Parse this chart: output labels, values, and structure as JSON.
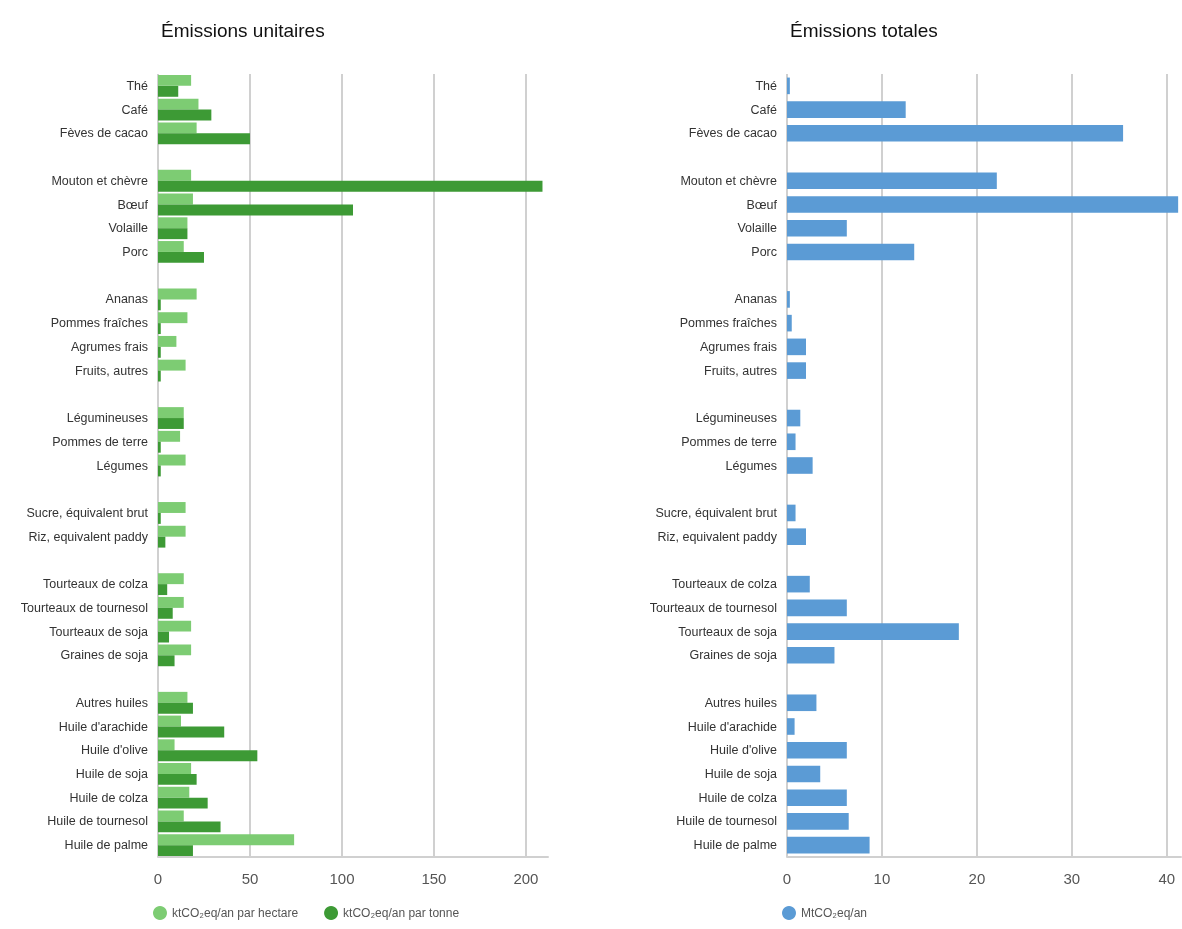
{
  "chart_data": [
    {
      "type": "bar",
      "orientation": "horizontal",
      "title": "Émissions unitaires",
      "categories": [
        "Thé",
        "Café",
        "Fèves de cacao",
        null,
        "Mouton et chèvre",
        "Bœuf",
        "Volaille",
        "Porc",
        null,
        "Ananas",
        "Pommes fraîches",
        "Agrumes frais",
        "Fruits, autres",
        null,
        "Légumineuses",
        "Pommes de terre",
        "Légumes",
        null,
        "Sucre, équivalent brut",
        "Riz, equivalent paddy",
        null,
        "Tourteaux de colza",
        "Tourteaux de tournesol",
        "Tourteaux de soja",
        "Graines de soja",
        null,
        "Autres huiles",
        "Huile d'arachide",
        "Huile d'olive",
        "Huile de soja",
        "Huile de colza",
        "Huile de tournesol",
        "Huile de palme"
      ],
      "series": [
        {
          "name": "ktCO₂eq/an par hectare",
          "color": "#7dcc73",
          "values": [
            18,
            22,
            21,
            null,
            18,
            19,
            16,
            14,
            null,
            21,
            16,
            10,
            15,
            null,
            14,
            12,
            15,
            null,
            15,
            15,
            null,
            14,
            14,
            18,
            18,
            null,
            16,
            12.5,
            9,
            18,
            17,
            14,
            74
          ]
        },
        {
          "name": "ktCO₂eq/an par tonne",
          "color": "#3d9a35",
          "values": [
            11,
            29,
            50,
            null,
            209,
            106,
            16,
            25,
            null,
            1.5,
            1.5,
            1.5,
            1.5,
            null,
            14,
            1.5,
            1.5,
            null,
            1.5,
            4,
            null,
            5,
            8,
            6,
            9,
            null,
            19,
            36,
            54,
            21,
            27,
            34,
            19
          ]
        }
      ],
      "xlim": [
        0,
        212
      ],
      "xticks": [
        0,
        50,
        100,
        150,
        200
      ],
      "grid": "x",
      "legend": "bottom"
    },
    {
      "type": "bar",
      "orientation": "horizontal",
      "title": "Émissions totales",
      "categories": [
        "Thé",
        "Café",
        "Fèves de cacao",
        null,
        "Mouton et chèvre",
        "Bœuf",
        "Volaille",
        "Porc",
        null,
        "Ananas",
        "Pommes fraîches",
        "Agrumes frais",
        "Fruits, autres",
        null,
        "Légumineuses",
        "Pommes de terre",
        "Légumes",
        null,
        "Sucre, équivalent brut",
        "Riz, equivalent paddy",
        null,
        "Tourteaux de colza",
        "Tourteaux de tournesol",
        "Tourteaux de soja",
        "Graines de soja",
        null,
        "Autres huiles",
        "Huile d'arachide",
        "Huile d'olive",
        "Huile de soja",
        "Huile de colza",
        "Huile de tournesol",
        "Huile de palme"
      ],
      "series": [
        {
          "name": "MtCO₂eq/an",
          "color": "#5b9bd5",
          "values": [
            0.3,
            12.5,
            35.4,
            null,
            22.1,
            41.2,
            6.3,
            13.4,
            null,
            0.3,
            0.5,
            2.0,
            2.0,
            null,
            1.4,
            0.9,
            2.7,
            null,
            0.9,
            2.0,
            null,
            2.4,
            6.3,
            18.1,
            5.0,
            null,
            3.1,
            0.8,
            6.3,
            3.5,
            6.3,
            6.5,
            8.7
          ]
        }
      ],
      "xlim": [
        0,
        41.5
      ],
      "xticks": [
        0,
        10,
        20,
        30,
        40
      ],
      "grid": "x",
      "legend": "bottom"
    }
  ]
}
